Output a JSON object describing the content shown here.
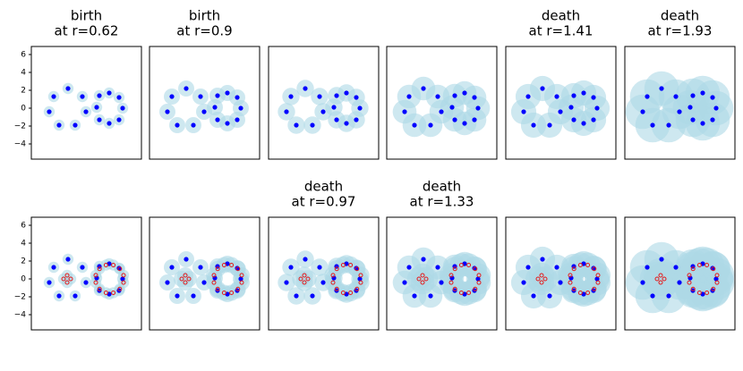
{
  "chart_data": [
    {
      "type": "scatter",
      "title": [
        "birth",
        "at r=0.62"
      ],
      "radius": 0.62,
      "ball_color": "#add8e6",
      "xlim": [
        -4,
        8.3
      ],
      "ylim": [
        -5.7,
        6.9
      ],
      "yticks": [
        {
          "value": -4,
          "label": "−4"
        },
        {
          "value": -2,
          "label": "−2"
        },
        0,
        2,
        4,
        6
      ],
      "series": [
        {
          "color": "#0000ff",
          "marker": "filled",
          "x": [
            -2,
            -1.5,
            0.1,
            1.7,
            2.1,
            0.9,
            -0.9,
            3.3,
            3.6,
            4.7,
            5.8,
            6.2,
            5.8,
            4.7,
            3.6
          ],
          "y": [
            -0.4,
            1.3,
            2.2,
            1.3,
            -0.4,
            -1.9,
            -1.9,
            0.1,
            1.4,
            1.7,
            1.2,
            0,
            -1.3,
            -1.7,
            -1.3
          ]
        }
      ]
    },
    {
      "type": "scatter",
      "title": [
        "birth",
        "at r=0.9"
      ],
      "radius": 0.9,
      "ball_color": "#add8e6",
      "xlim": [
        -4,
        8.3
      ],
      "ylim": [
        -5.7,
        6.9
      ],
      "series": [
        {
          "color": "#0000ff",
          "marker": "filled",
          "x": [
            -2,
            -1.5,
            0.1,
            1.7,
            2.1,
            0.9,
            -0.9,
            3.3,
            3.6,
            4.7,
            5.8,
            6.2,
            5.8,
            4.7,
            3.6
          ],
          "y": [
            -0.4,
            1.3,
            2.2,
            1.3,
            -0.4,
            -1.9,
            -1.9,
            0.1,
            1.4,
            1.7,
            1.2,
            0,
            -1.3,
            -1.7,
            -1.3
          ]
        }
      ]
    },
    {
      "type": "scatter",
      "radius": 0.97,
      "ball_color": "#add8e6",
      "xlim": [
        -4,
        8.3
      ],
      "ylim": [
        -5.7,
        6.9
      ],
      "series": [
        {
          "color": "#0000ff",
          "marker": "filled",
          "x": [
            -2,
            -1.5,
            0.1,
            1.7,
            2.1,
            0.9,
            -0.9,
            3.3,
            3.6,
            4.7,
            5.8,
            6.2,
            5.8,
            4.7,
            3.6
          ],
          "y": [
            -0.4,
            1.3,
            2.2,
            1.3,
            -0.4,
            -1.9,
            -1.9,
            0.1,
            1.4,
            1.7,
            1.2,
            0,
            -1.3,
            -1.7,
            -1.3
          ]
        }
      ]
    },
    {
      "type": "scatter",
      "radius": 1.33,
      "ball_color": "#add8e6",
      "xlim": [
        -4,
        8.3
      ],
      "ylim": [
        -5.7,
        6.9
      ],
      "series": [
        {
          "color": "#0000ff",
          "marker": "filled",
          "x": [
            -2,
            -1.5,
            0.1,
            1.7,
            2.1,
            0.9,
            -0.9,
            3.3,
            3.6,
            4.7,
            5.8,
            6.2,
            5.8,
            4.7,
            3.6
          ],
          "y": [
            -0.4,
            1.3,
            2.2,
            1.3,
            -0.4,
            -1.9,
            -1.9,
            0.1,
            1.4,
            1.7,
            1.2,
            0,
            -1.3,
            -1.7,
            -1.3
          ]
        }
      ]
    },
    {
      "type": "scatter",
      "title": [
        "death",
        "at r=1.41"
      ],
      "radius": 1.41,
      "ball_color": "#add8e6",
      "xlim": [
        -4,
        8.3
      ],
      "ylim": [
        -5.7,
        6.9
      ],
      "series": [
        {
          "color": "#0000ff",
          "marker": "filled",
          "x": [
            -2,
            -1.5,
            0.1,
            1.7,
            2.1,
            0.9,
            -0.9,
            3.3,
            3.6,
            4.7,
            5.8,
            6.2,
            5.8,
            4.7,
            3.6
          ],
          "y": [
            -0.4,
            1.3,
            2.2,
            1.3,
            -0.4,
            -1.9,
            -1.9,
            0.1,
            1.4,
            1.7,
            1.2,
            0,
            -1.3,
            -1.7,
            -1.3
          ]
        }
      ]
    },
    {
      "type": "scatter",
      "title": [
        "death",
        "at r=1.93"
      ],
      "radius": 1.93,
      "ball_color": "#add8e6",
      "xlim": [
        -4,
        8.3
      ],
      "ylim": [
        -5.7,
        6.9
      ],
      "series": [
        {
          "color": "#0000ff",
          "marker": "filled",
          "x": [
            -2,
            -1.5,
            0.1,
            1.7,
            2.1,
            0.9,
            -0.9,
            3.3,
            3.6,
            4.7,
            5.8,
            6.2,
            5.8,
            4.7,
            3.6
          ],
          "y": [
            -0.4,
            1.3,
            2.2,
            1.3,
            -0.4,
            -1.9,
            -1.9,
            0.1,
            1.4,
            1.7,
            1.2,
            0,
            -1.3,
            -1.7,
            -1.3
          ]
        }
      ]
    },
    {
      "type": "scatter",
      "radius": 0.62,
      "ball_color": "#add8e6",
      "xlim": [
        -4,
        8.3
      ],
      "ylim": [
        -5.7,
        6.9
      ],
      "yticks": [
        {
          "value": -4,
          "label": "−4"
        },
        {
          "value": -2,
          "label": "−2"
        },
        0,
        2,
        4,
        6
      ],
      "series": [
        {
          "color": "#0000ff",
          "marker": "filled",
          "x": [
            -2,
            -1.5,
            0.1,
            1.7,
            2.1,
            0.9,
            -0.9,
            3.3,
            3.6,
            4.7,
            5.8,
            6.2,
            5.8,
            4.7,
            3.6
          ],
          "y": [
            -0.4,
            1.3,
            2.2,
            1.3,
            -0.4,
            -1.9,
            -1.9,
            0.1,
            1.4,
            1.7,
            1.2,
            0,
            -1.3,
            -1.7,
            -1.3
          ]
        },
        {
          "color": "#e41a1c",
          "marker": "hollow",
          "x": [
            -0.4,
            0.4,
            0,
            0,
            6.3,
            5.88,
            5.16,
            4.34,
            3.62,
            3.2,
            3.2,
            3.62,
            4.34,
            5.16,
            5.88,
            6.3
          ],
          "y": [
            0,
            0,
            0.4,
            -0.4,
            0.41,
            1.13,
            1.55,
            1.55,
            1.13,
            0.41,
            -0.41,
            -1.13,
            -1.55,
            -1.55,
            -1.13,
            -0.41
          ]
        }
      ]
    },
    {
      "type": "scatter",
      "radius": 0.9,
      "ball_color": "#add8e6",
      "xlim": [
        -4,
        8.3
      ],
      "ylim": [
        -5.7,
        6.9
      ],
      "series": [
        {
          "color": "#0000ff",
          "marker": "filled",
          "x": [
            -2,
            -1.5,
            0.1,
            1.7,
            2.1,
            0.9,
            -0.9,
            3.3,
            3.6,
            4.7,
            5.8,
            6.2,
            5.8,
            4.7,
            3.6
          ],
          "y": [
            -0.4,
            1.3,
            2.2,
            1.3,
            -0.4,
            -1.9,
            -1.9,
            0.1,
            1.4,
            1.7,
            1.2,
            0,
            -1.3,
            -1.7,
            -1.3
          ]
        },
        {
          "color": "#e41a1c",
          "marker": "hollow",
          "x": [
            -0.4,
            0.4,
            0,
            0,
            6.3,
            5.88,
            5.16,
            4.34,
            3.62,
            3.2,
            3.2,
            3.62,
            4.34,
            5.16,
            5.88,
            6.3
          ],
          "y": [
            0,
            0,
            0.4,
            -0.4,
            0.41,
            1.13,
            1.55,
            1.55,
            1.13,
            0.41,
            -0.41,
            -1.13,
            -1.55,
            -1.55,
            -1.13,
            -0.41
          ]
        }
      ]
    },
    {
      "type": "scatter",
      "title": [
        "death",
        "at r=0.97"
      ],
      "radius": 0.97,
      "ball_color": "#add8e6",
      "xlim": [
        -4,
        8.3
      ],
      "ylim": [
        -5.7,
        6.9
      ],
      "series": [
        {
          "color": "#0000ff",
          "marker": "filled",
          "x": [
            -2,
            -1.5,
            0.1,
            1.7,
            2.1,
            0.9,
            -0.9,
            3.3,
            3.6,
            4.7,
            5.8,
            6.2,
            5.8,
            4.7,
            3.6
          ],
          "y": [
            -0.4,
            1.3,
            2.2,
            1.3,
            -0.4,
            -1.9,
            -1.9,
            0.1,
            1.4,
            1.7,
            1.2,
            0,
            -1.3,
            -1.7,
            -1.3
          ]
        },
        {
          "color": "#e41a1c",
          "marker": "hollow",
          "x": [
            -0.4,
            0.4,
            0,
            0,
            6.3,
            5.88,
            5.16,
            4.34,
            3.62,
            3.2,
            3.2,
            3.62,
            4.34,
            5.16,
            5.88,
            6.3
          ],
          "y": [
            0,
            0,
            0.4,
            -0.4,
            0.41,
            1.13,
            1.55,
            1.55,
            1.13,
            0.41,
            -0.41,
            -1.13,
            -1.55,
            -1.55,
            -1.13,
            -0.41
          ]
        }
      ]
    },
    {
      "type": "scatter",
      "title": [
        "death",
        "at r=1.33"
      ],
      "radius": 1.33,
      "ball_color": "#add8e6",
      "xlim": [
        -4,
        8.3
      ],
      "ylim": [
        -5.7,
        6.9
      ],
      "series": [
        {
          "color": "#0000ff",
          "marker": "filled",
          "x": [
            -2,
            -1.5,
            0.1,
            1.7,
            2.1,
            0.9,
            -0.9,
            3.3,
            3.6,
            4.7,
            5.8,
            6.2,
            5.8,
            4.7,
            3.6
          ],
          "y": [
            -0.4,
            1.3,
            2.2,
            1.3,
            -0.4,
            -1.9,
            -1.9,
            0.1,
            1.4,
            1.7,
            1.2,
            0,
            -1.3,
            -1.7,
            -1.3
          ]
        },
        {
          "color": "#e41a1c",
          "marker": "hollow",
          "x": [
            -0.4,
            0.4,
            0,
            0,
            6.3,
            5.88,
            5.16,
            4.34,
            3.62,
            3.2,
            3.2,
            3.62,
            4.34,
            5.16,
            5.88,
            6.3
          ],
          "y": [
            0,
            0,
            0.4,
            -0.4,
            0.41,
            1.13,
            1.55,
            1.55,
            1.13,
            0.41,
            -0.41,
            -1.13,
            -1.55,
            -1.55,
            -1.13,
            -0.41
          ]
        }
      ]
    },
    {
      "type": "scatter",
      "radius": 1.41,
      "ball_color": "#add8e6",
      "xlim": [
        -4,
        8.3
      ],
      "ylim": [
        -5.7,
        6.9
      ],
      "series": [
        {
          "color": "#0000ff",
          "marker": "filled",
          "x": [
            -2,
            -1.5,
            0.1,
            1.7,
            2.1,
            0.9,
            -0.9,
            3.3,
            3.6,
            4.7,
            5.8,
            6.2,
            5.8,
            4.7,
            3.6
          ],
          "y": [
            -0.4,
            1.3,
            2.2,
            1.3,
            -0.4,
            -1.9,
            -1.9,
            0.1,
            1.4,
            1.7,
            1.2,
            0,
            -1.3,
            -1.7,
            -1.3
          ]
        },
        {
          "color": "#e41a1c",
          "marker": "hollow",
          "x": [
            -0.4,
            0.4,
            0,
            0,
            6.3,
            5.88,
            5.16,
            4.34,
            3.62,
            3.2,
            3.2,
            3.62,
            4.34,
            5.16,
            5.88,
            6.3
          ],
          "y": [
            0,
            0,
            0.4,
            -0.4,
            0.41,
            1.13,
            1.55,
            1.55,
            1.13,
            0.41,
            -0.41,
            -1.13,
            -1.55,
            -1.55,
            -1.13,
            -0.41
          ]
        }
      ]
    },
    {
      "type": "scatter",
      "radius": 1.93,
      "ball_color": "#add8e6",
      "xlim": [
        -4,
        8.3
      ],
      "ylim": [
        -5.7,
        6.9
      ],
      "series": [
        {
          "color": "#0000ff",
          "marker": "filled",
          "x": [
            -2,
            -1.5,
            0.1,
            1.7,
            2.1,
            0.9,
            -0.9,
            3.3,
            3.6,
            4.7,
            5.8,
            6.2,
            5.8,
            4.7,
            3.6
          ],
          "y": [
            -0.4,
            1.3,
            2.2,
            1.3,
            -0.4,
            -1.9,
            -1.9,
            0.1,
            1.4,
            1.7,
            1.2,
            0,
            -1.3,
            -1.7,
            -1.3
          ]
        },
        {
          "color": "#e41a1c",
          "marker": "hollow",
          "x": [
            -0.4,
            0.4,
            0,
            0,
            6.3,
            5.88,
            5.16,
            4.34,
            3.62,
            3.2,
            3.2,
            3.62,
            4.34,
            5.16,
            5.88,
            6.3
          ],
          "y": [
            0,
            0,
            0.4,
            -0.4,
            0.41,
            1.13,
            1.55,
            1.55,
            1.13,
            0.41,
            -0.41,
            -1.13,
            -1.55,
            -1.55,
            -1.13,
            -0.41
          ]
        }
      ]
    }
  ]
}
